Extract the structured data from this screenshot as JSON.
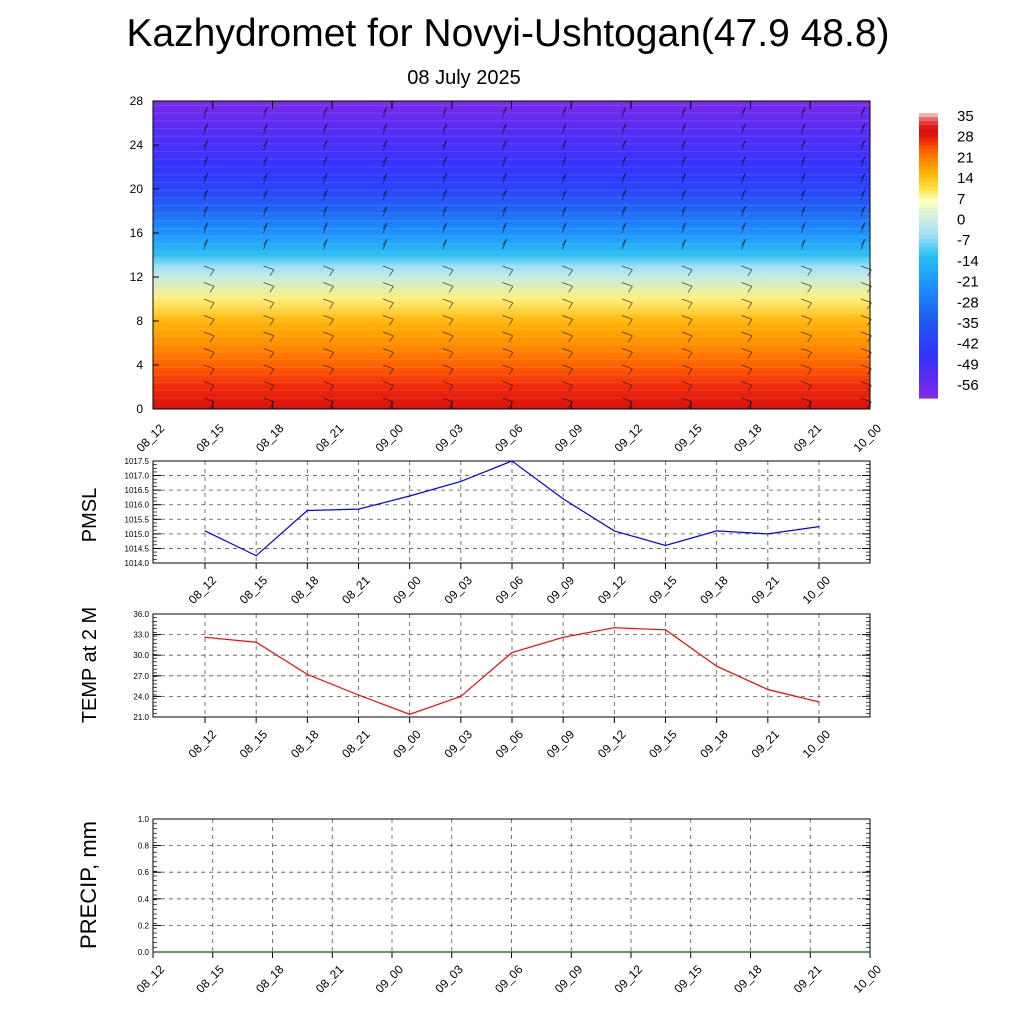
{
  "title": "Kazhydromet for Novyi-Ushtogan(47.9 48.8)",
  "subtitle": "08 July 2025",
  "chart_data": [
    {
      "id": "cross-section",
      "type": "heatmap",
      "x_ticks": [
        "08_12",
        "08_15",
        "08_18",
        "08_21",
        "09_00",
        "09_03",
        "09_06",
        "09_09",
        "09_12",
        "09_15",
        "09_18",
        "09_21",
        "10_00"
      ],
      "y_ticks": [
        0,
        4,
        8,
        12,
        16,
        20,
        24,
        28
      ],
      "ylim": [
        0,
        28
      ],
      "colorbar": {
        "labels": [
          35,
          28,
          21,
          14,
          7,
          0,
          -7,
          -14,
          -21,
          -28,
          -35,
          -42,
          -49,
          -56
        ],
        "range": [
          -63,
          38
        ],
        "colors": [
          "#8a2be2",
          "#5a2cf5",
          "#2f35ff",
          "#1f5bf0",
          "#1e90ff",
          "#24bdf2",
          "#a3e1f7",
          "#ffffbf",
          "#ffe44a",
          "#ffb000",
          "#ff7f00",
          "#ff4a00",
          "#e81a10",
          "#d10d0d",
          "#e84a4a",
          "#f5b0b0"
        ],
        "color_positions": [
          0.0,
          0.08,
          0.16,
          0.28,
          0.4,
          0.5,
          0.58,
          0.7,
          0.74,
          0.8,
          0.85,
          0.89,
          0.92,
          0.95,
          0.98,
          1.0
        ]
      },
      "temperature_by_level": [
        {
          "level": 0,
          "value": 32
        },
        {
          "level": 2,
          "value": 29
        },
        {
          "level": 4,
          "value": 25
        },
        {
          "level": 6,
          "value": 21
        },
        {
          "level": 8,
          "value": 17
        },
        {
          "level": 10,
          "value": 10
        },
        {
          "level": 12,
          "value": 0
        },
        {
          "level": 13,
          "value": -5
        },
        {
          "level": 14,
          "value": -12
        },
        {
          "level": 16,
          "value": -22
        },
        {
          "level": 18,
          "value": -32
        },
        {
          "level": 20,
          "value": -42
        },
        {
          "level": 22,
          "value": -48
        },
        {
          "level": 24,
          "value": -52
        },
        {
          "level": 26,
          "value": -56
        },
        {
          "level": 28,
          "value": -60
        }
      ],
      "grid": false
    },
    {
      "id": "pmsl",
      "type": "line",
      "ylabel": "PMSL",
      "categories": [
        "08_12",
        "08_15",
        "08_18",
        "08_21",
        "09_00",
        "09_03",
        "09_06",
        "09_09",
        "09_12",
        "09_15",
        "09_18",
        "09_21",
        "10_00"
      ],
      "values": [
        1015.1,
        1014.25,
        1015.8,
        1015.85,
        1016.3,
        1016.8,
        1017.5,
        1016.2,
        1015.1,
        1014.6,
        1015.1,
        1015.0,
        1015.25
      ],
      "ylim": [
        1014.0,
        1017.5
      ],
      "y_ticks": [
        "1014.0",
        "1014.5",
        "1015.0",
        "1015.5",
        "1016.0",
        "1016.5",
        "1017.0",
        "1017.5"
      ],
      "color": "#0000ff",
      "grid": true
    },
    {
      "id": "temp2m",
      "type": "line",
      "ylabel": "TEMP at 2 M",
      "categories": [
        "08_12",
        "08_15",
        "08_18",
        "08_21",
        "09_00",
        "09_03",
        "09_06",
        "09_09",
        "09_12",
        "09_15",
        "09_18",
        "09_21",
        "10_00"
      ],
      "values": [
        32.6,
        31.9,
        27.2,
        24.2,
        21.4,
        24.0,
        30.4,
        32.6,
        34.0,
        33.7,
        28.4,
        25.0,
        23.2
      ],
      "ylim": [
        21.0,
        36.0
      ],
      "y_ticks": [
        "21.0",
        "24.0",
        "27.0",
        "30.0",
        "33.0",
        "36.0"
      ],
      "color": "#ff0000",
      "grid": true
    },
    {
      "id": "precip",
      "type": "line",
      "ylabel": "PRECIP, mm",
      "categories": [
        "08_12",
        "08_15",
        "08_18",
        "08_21",
        "09_00",
        "09_03",
        "09_06",
        "09_09",
        "09_12",
        "09_15",
        "09_18",
        "09_21",
        "10_00"
      ],
      "values": [
        0,
        0,
        0,
        0,
        0,
        0,
        0,
        0,
        0,
        0,
        0,
        0,
        0
      ],
      "ylim": [
        0.0,
        1.0
      ],
      "y_ticks": [
        "0.0",
        "0.2",
        "0.4",
        "0.6",
        "0.8",
        "1.0"
      ],
      "color": "#006400",
      "grid": true
    }
  ]
}
